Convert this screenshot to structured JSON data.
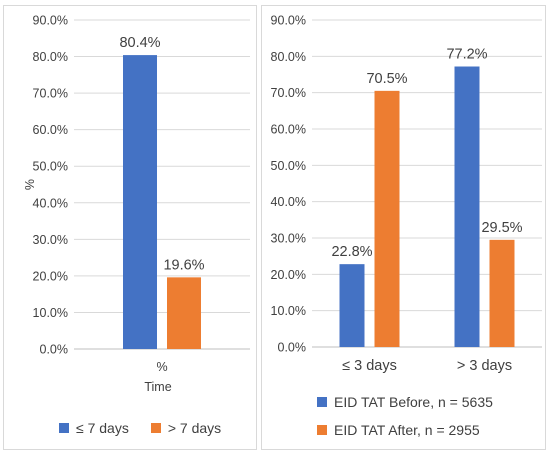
{
  "colors": {
    "blue": "#4472c4",
    "orange": "#ed7d31",
    "grid": "#d9d9d9",
    "text": "#404040"
  },
  "chart_data": [
    {
      "type": "bar",
      "title": "",
      "ylabel": "%",
      "xlabel": "Time",
      "categories": [
        "%"
      ],
      "ylim": [
        0,
        90
      ],
      "yticks": [
        "0.0%",
        "10.0%",
        "20.0%",
        "30.0%",
        "40.0%",
        "50.0%",
        "60.0%",
        "70.0%",
        "80.0%",
        "90.0%"
      ],
      "grid": "horizontal",
      "legend_position": "bottom",
      "series": [
        {
          "name": "≤ 7 days",
          "values": [
            80.4
          ],
          "labels": [
            "80.4%"
          ],
          "color": "#4472c4"
        },
        {
          "name": "> 7 days",
          "values": [
            19.6
          ],
          "labels": [
            "19.6%"
          ],
          "color": "#ed7d31"
        }
      ]
    },
    {
      "type": "bar",
      "title": "",
      "ylabel": "",
      "xlabel": "",
      "categories": [
        "≤ 3 days",
        "> 3 days"
      ],
      "ylim": [
        0,
        90
      ],
      "yticks": [
        "0.0%",
        "10.0%",
        "20.0%",
        "30.0%",
        "40.0%",
        "50.0%",
        "60.0%",
        "70.0%",
        "80.0%",
        "90.0%"
      ],
      "grid": "horizontal",
      "legend_position": "bottom",
      "series": [
        {
          "name": "EID TAT Before, n = 5635",
          "values": [
            22.8,
            77.2
          ],
          "labels": [
            "22.8%",
            "77.2%"
          ],
          "color": "#4472c4"
        },
        {
          "name": "EID TAT After, n = 2955",
          "values": [
            70.5,
            29.5
          ],
          "labels": [
            "70.5%",
            "29.5%"
          ],
          "color": "#ed7d31"
        }
      ]
    }
  ]
}
